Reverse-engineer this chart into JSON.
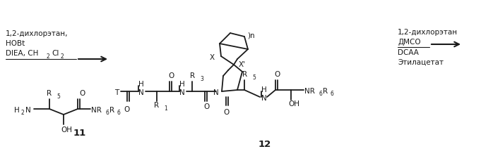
{
  "background_color": "#ffffff",
  "fig_width": 6.98,
  "fig_height": 2.22,
  "dpi": 100,
  "text_color": "#1a1a1a",
  "line_color": "#1a1a1a",
  "left_reagent_line1": "1,2-дихлорэтан,",
  "left_reagent_line2": "HOBt",
  "left_reagent_line3": "DIEA, CH",
  "left_reagent_line3b": "2",
  "left_reagent_line3c": "Cl",
  "left_reagent_line3d": "2",
  "right_reagent_line1": "1,2-дихлорэтан",
  "right_reagent_line2": "ДМСО",
  "right_reagent_line3": "DCAA",
  "right_reagent_line4": "Этилацетат",
  "compound11": "11",
  "compound12": "12"
}
